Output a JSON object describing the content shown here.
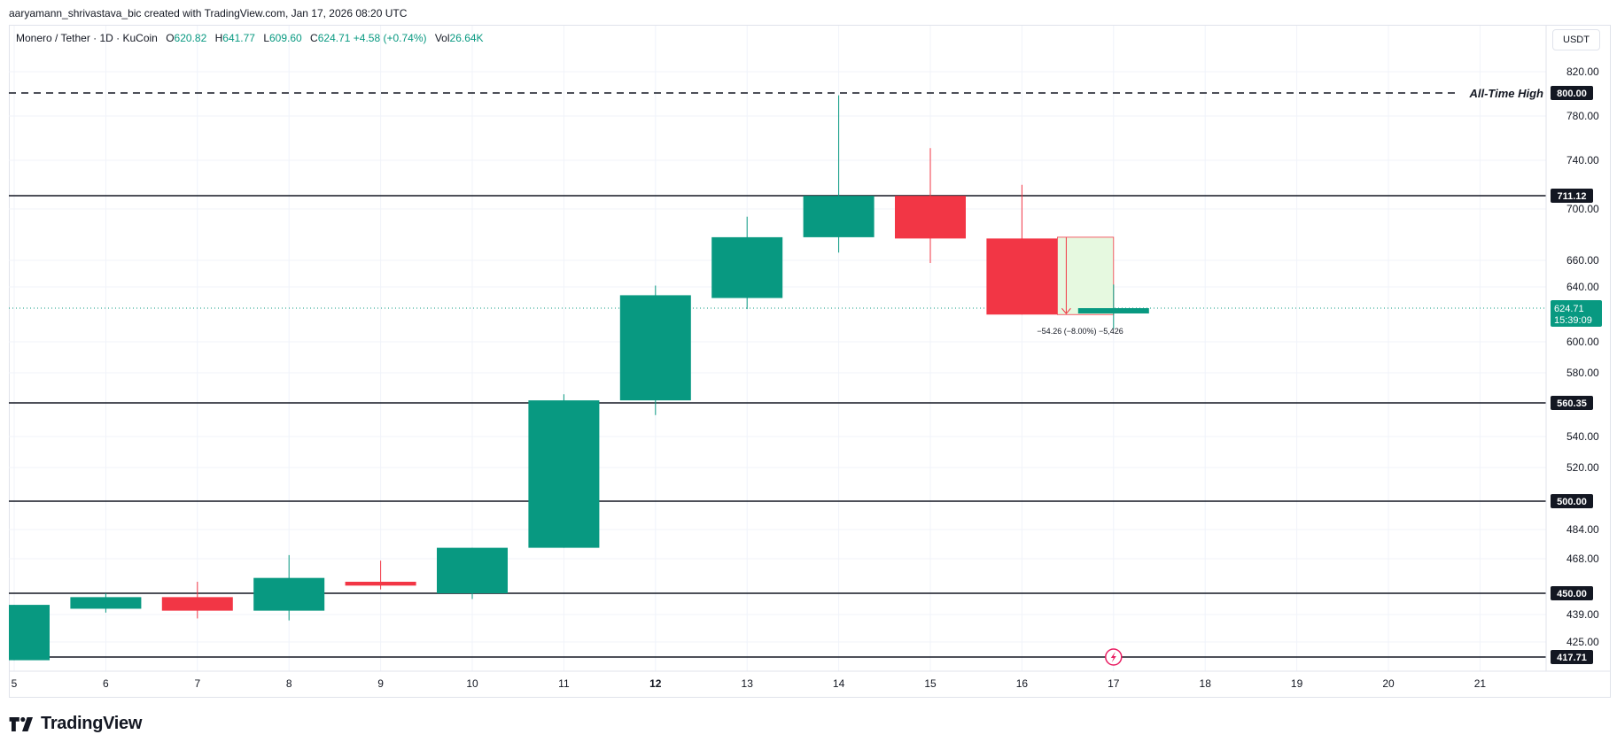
{
  "caption": "aaryamann_shrivastava_bic created with TradingView.com, Jan 17, 2026 08:20 UTC",
  "legend": {
    "symbol": "Monero / Tether · 1D · KuCoin",
    "open_label": "O",
    "open": "620.82",
    "high_label": "H",
    "high": "641.77",
    "low_label": "L",
    "low": "609.60",
    "close_label": "C",
    "close": "624.71",
    "change": "+4.58 (+0.74%)",
    "vol_label": "Vol",
    "vol": "26.64K"
  },
  "currency": "USDT",
  "brand": {
    "name": "TradingView",
    "icon": "tradingview-logo-icon"
  },
  "colors": {
    "up": "#089981",
    "down": "#f23645",
    "line": "#131722",
    "grid": "#f0f3fa",
    "range_fill": "#e6f9e0",
    "range_border": "#f23645"
  },
  "chart_data": {
    "type": "candlestick",
    "x_ticks": [
      "5",
      "6",
      "7",
      "8",
      "9",
      "10",
      "11",
      "12",
      "13",
      "14",
      "15",
      "16",
      "17",
      "18",
      "19",
      "20",
      "21"
    ],
    "bold_ticks": [
      "12"
    ],
    "y_ticks": [
      "820.00",
      "780.00",
      "740.00",
      "700.00",
      "660.00",
      "640.00",
      "600.00",
      "580.00",
      "540.00",
      "520.00",
      "484.00",
      "468.00",
      "439.00",
      "425.00"
    ],
    "candles": [
      {
        "x": 5,
        "open": 416,
        "high": 444,
        "low": 416,
        "close": 444
      },
      {
        "x": 6,
        "open": 442,
        "high": 450,
        "low": 440,
        "close": 448
      },
      {
        "x": 7,
        "open": 448,
        "high": 456,
        "low": 437,
        "close": 441
      },
      {
        "x": 8,
        "open": 441,
        "high": 470,
        "low": 436,
        "close": 458
      },
      {
        "x": 9,
        "open": 456,
        "high": 467,
        "low": 452,
        "close": 454
      },
      {
        "x": 10,
        "open": 450,
        "high": 474,
        "low": 447,
        "close": 474
      },
      {
        "x": 11,
        "open": 474,
        "high": 566,
        "low": 474,
        "close": 562
      },
      {
        "x": 12,
        "open": 562,
        "high": 641,
        "low": 553,
        "close": 634
      },
      {
        "x": 13,
        "open": 632,
        "high": 694,
        "low": 624,
        "close": 678
      },
      {
        "x": 14,
        "open": 678,
        "high": 798,
        "low": 666,
        "close": 711
      },
      {
        "x": 15,
        "open": 711,
        "high": 751,
        "low": 658,
        "close": 677
      },
      {
        "x": 16,
        "open": 677,
        "high": 720,
        "low": 620,
        "close": 620
      },
      {
        "x": 17,
        "open": 620.82,
        "high": 641.77,
        "low": 609.6,
        "close": 624.71
      }
    ],
    "horizontal_lines": [
      {
        "price": 800.0,
        "label": "800.00",
        "style": "dashed",
        "note": "All-Time High"
      },
      {
        "price": 711.12,
        "label": "711.12",
        "style": "solid"
      },
      {
        "price": 560.35,
        "label": "560.35",
        "style": "solid"
      },
      {
        "price": 500.0,
        "label": "500.00",
        "style": "solid"
      },
      {
        "price": 450.0,
        "label": "450.00",
        "style": "solid"
      },
      {
        "price": 417.71,
        "label": "417.71",
        "style": "solid"
      }
    ],
    "price_range": {
      "from_x": 16,
      "to_x": 17,
      "from": 678,
      "to": 620,
      "label": "−54.26 (−8.00%) −5,426"
    },
    "last_price": {
      "price": 624.71,
      "label": "624.71",
      "countdown": "15:39:09"
    }
  }
}
